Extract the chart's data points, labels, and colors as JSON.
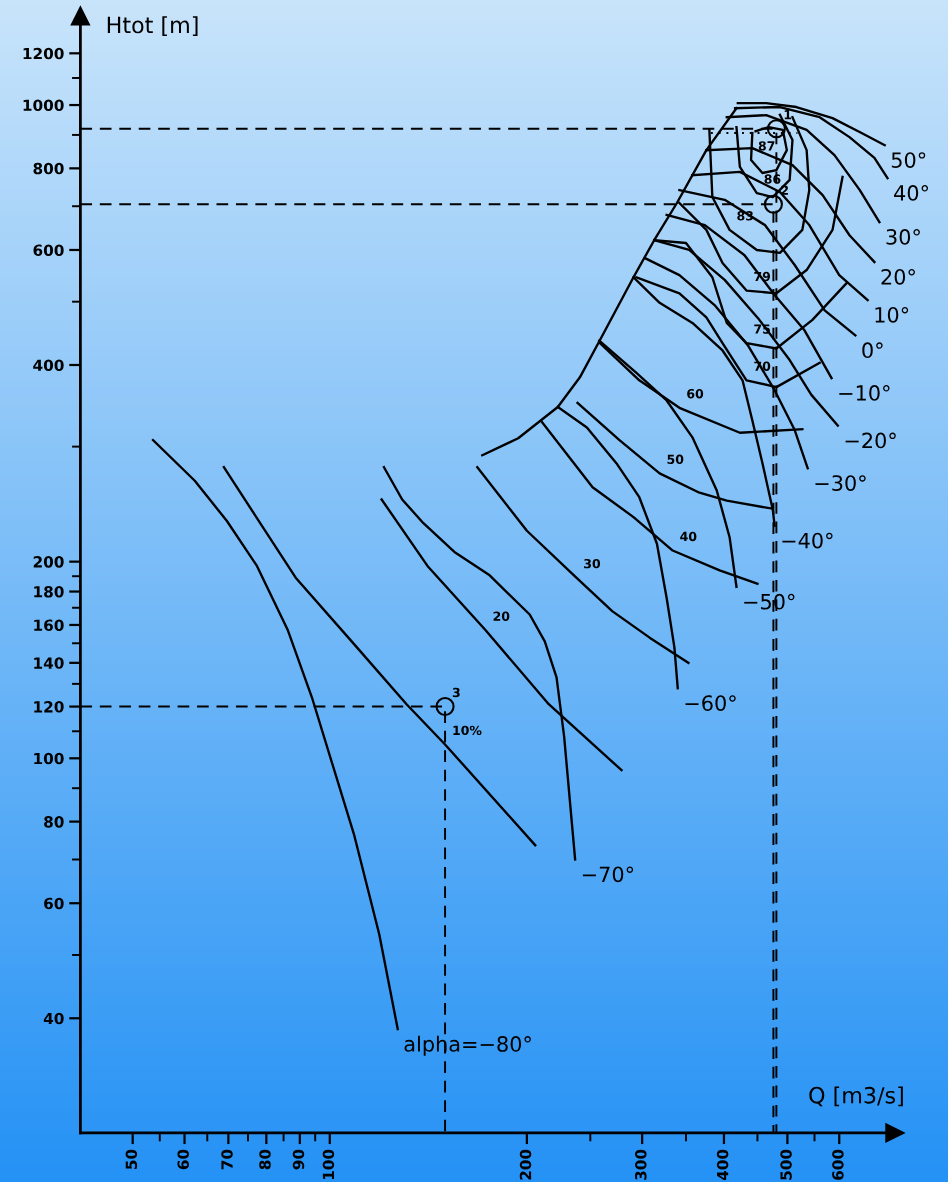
{
  "chart_data": {
    "type": "line",
    "log": "xy",
    "xlabel": "Q [m3/s]",
    "ylabel": "Htot [m]",
    "xlim": [
      41.6,
      730
    ],
    "ylim": [
      26.7,
      1370
    ],
    "xticks": [
      50,
      {
        "value": 55,
        "label": null
      },
      60,
      {
        "value": 65,
        "label": null
      },
      70,
      {
        "value": 75,
        "label": null
      },
      80,
      {
        "value": 85,
        "label": null
      },
      90,
      {
        "value": 95,
        "label": null
      },
      100,
      200,
      {
        "value": 250,
        "label": null
      },
      300,
      {
        "value": 350,
        "label": null
      },
      400,
      {
        "value": 450,
        "label": null
      },
      500,
      {
        "value": 550,
        "label": null
      },
      600
    ],
    "yticks": [
      40,
      {
        "value": 50,
        "label": null
      },
      60,
      {
        "value": 70,
        "label": null
      },
      80,
      {
        "value": 90,
        "label": null
      },
      100,
      {
        "value": 110,
        "label": null
      },
      120,
      {
        "value": 130,
        "label": null
      },
      140,
      {
        "value": 150,
        "label": null
      },
      160,
      {
        "value": 170,
        "label": null
      },
      180,
      {
        "value": 190,
        "label": null
      },
      200,
      {
        "value": 300,
        "label": null
      },
      400,
      {
        "value": 500,
        "label": null
      },
      600,
      {
        "value": 700,
        "label": null
      },
      800,
      {
        "value": 900,
        "label": null
      },
      1000,
      {
        "value": 1100,
        "label": null
      },
      1200
    ],
    "annotations": [
      {
        "text": "10%",
        "x": 150,
        "y": 105
      },
      {
        "text": "20",
        "x": 173,
        "y": 157
      },
      {
        "text": "30",
        "x": 238,
        "y": 189
      },
      {
        "text": "40",
        "x": 334,
        "y": 208
      },
      {
        "text": "50",
        "x": 319,
        "y": 273
      },
      {
        "text": "60",
        "x": 342,
        "y": 344
      },
      {
        "text": "70",
        "x": 433,
        "y": 379
      },
      {
        "text": "75",
        "x": 433,
        "y": 432
      },
      {
        "text": "79",
        "x": 433,
        "y": 520
      },
      {
        "text": "83",
        "x": 408,
        "y": 644
      },
      {
        "text": "86",
        "x": 449,
        "y": 733
      },
      {
        "text": "87",
        "x": 440,
        "y": 824
      },
      {
        "text": "1",
        "x": 481,
        "y": 920
      },
      {
        "text": "2",
        "x": 476,
        "y": 705
      },
      {
        "text": "3",
        "x": 150,
        "y": 120
      }
    ],
    "series": [
      {
        "name": "50°",
        "color": "#000000",
        "x": [
          420,
          464,
          516,
          586,
          649,
          704
        ],
        "values": [
          1007,
          1007,
          993,
          955,
          906,
          868
        ]
      },
      {
        "name": "40°",
        "color": "#000000",
        "x": [
          416,
          487,
          560,
          622,
          679,
          711
        ],
        "values": [
          989,
          993,
          958,
          893,
          830,
          773
        ]
      },
      {
        "name": "30°",
        "color": "#000000",
        "x": [
          404,
          464,
          535,
          590,
          645,
          691
        ],
        "values": [
          958,
          965,
          916,
          838,
          741,
          662
        ]
      },
      {
        "name": "20°",
        "color": "#000000",
        "x": [
          376,
          442,
          509,
          566,
          622,
          679
        ],
        "values": [
          853,
          859,
          809,
          728,
          632,
          575
        ]
      },
      {
        "name": "10°",
        "color": "#000000",
        "x": [
          358,
          423,
          487,
          540,
          600,
          663
        ],
        "values": [
          781,
          790,
          736,
          655,
          549,
          503
        ]
      },
      {
        "name": "0°",
        "color": "#000000",
        "x": [
          342,
          401,
          462,
          513,
          570,
          635
        ],
        "values": [
          741,
          716,
          655,
          569,
          485,
          444
        ]
      },
      {
        "name": "−10°",
        "color": "#000000",
        "x": [
          327,
          374,
          430,
          478,
          531,
          584
        ],
        "values": [
          679,
          655,
          589,
          512,
          452,
          382
        ]
      },
      {
        "name": "−20°",
        "color": "#000000",
        "x": [
          313,
          354,
          401,
          453,
          504,
          544,
          597
        ],
        "values": [
          621,
          600,
          540,
          469,
          407,
          360,
          323
        ]
      },
      {
        "name": "−30°",
        "color": "#000000",
        "x": [
          303,
          342,
          387,
          435,
          478,
          513,
          537
        ],
        "values": [
          583,
          549,
          494,
          429,
          366,
          318,
          278
        ]
      },
      {
        "name": "−40°",
        "color": "#000000",
        "x": [
          291,
          319,
          358,
          398,
          427,
          442,
          458,
          475,
          478
        ],
        "values": [
          545,
          498,
          464,
          421,
          379,
          329,
          283,
          240,
          227
        ]
      },
      {
        "name": "−50°",
        "color": "#000000",
        "x": [
          258,
          294,
          327,
          358,
          390,
          408,
          418
        ],
        "values": [
          436,
          389,
          353,
          310,
          257,
          218,
          183
        ]
      },
      {
        "name": "−60°",
        "color": "#000000",
        "x": [
          223,
          247,
          274,
          297,
          316,
          327,
          336,
          340
        ],
        "values": [
          345,
          321,
          283,
          251,
          213,
          176,
          148,
          128
        ]
      },
      {
        "name": "−70°",
        "color": "#000000",
        "x": [
          121,
          129,
          139,
          155,
          175,
          202,
          213,
          222,
          228,
          237
        ],
        "values": [
          279,
          249,
          229,
          207,
          191,
          166,
          151,
          133,
          108,
          70
        ]
      },
      {
        "name": "alpha=−80°",
        "color": "#000000",
        "x": [
          53.7,
          62.2,
          69.6,
          77.4,
          86.3,
          93.9,
          109,
          119,
          127
        ],
        "values": [
          307,
          266,
          231,
          197,
          157,
          124,
          76.2,
          53.8,
          38.5
        ]
      },
      {
        "color": "#000000",
        "x": [
          171,
          194,
          223,
          241,
          260,
          291,
          313,
          339,
          376,
          418
        ],
        "values": [
          291,
          309,
          345,
          383,
          441,
          545,
          621,
          708,
          853,
          989
        ]
      },
      {
        "color": "#000000",
        "x": [
          68.9,
          88.7,
          108,
          131,
          150,
          206
        ],
        "values": [
          279,
          189,
          151,
          121,
          105,
          73.6
        ]
      },
      {
        "color": "#000000",
        "x": [
          120,
          141,
          173,
          216,
          279
        ],
        "values": [
          249,
          197,
          157,
          121,
          95.9
        ]
      },
      {
        "color": "#000000",
        "x": [
          168,
          200,
          238,
          270,
          308,
          353
        ],
        "values": [
          279,
          223,
          189,
          168,
          153,
          140
        ]
      },
      {
        "color": "#000000",
        "x": [
          211,
          252,
          291,
          334,
          394,
          450
        ],
        "values": [
          327,
          260,
          234,
          208,
          194,
          185
        ]
      },
      {
        "color": "#000000",
        "x": [
          239,
          277,
          319,
          367,
          404,
          475
        ],
        "values": [
          350,
          307,
          273,
          255,
          248,
          241
        ]
      },
      {
        "color": "#000000",
        "x": [
          258,
          297,
          342,
          423,
          527
        ],
        "values": [
          433,
          379,
          344,
          315,
          319
        ]
      },
      {
        "color": "#000000",
        "x": [
          294,
          342,
          376,
          398,
          433,
          481,
          560
        ],
        "values": [
          545,
          515,
          473,
          432,
          379,
          370,
          403
        ]
      },
      {
        "color": "#000000",
        "x": [
          313,
          350,
          384,
          404,
          433,
          481,
          546,
          616
        ],
        "values": [
          621,
          615,
          545,
          464,
          432,
          424,
          469,
          534
        ]
      },
      {
        "color": "#000000",
        "x": [
          342,
          376,
          398,
          433,
          481,
          535,
          586,
          607
        ],
        "values": [
          708,
          644,
          573,
          520,
          515,
          559,
          644,
          776
        ]
      },
      {
        "color": "#000000",
        "x": [
          380,
          384,
          408,
          449,
          487,
          527,
          540,
          535,
          509
        ],
        "values": [
          916,
          723,
          644,
          600,
          594,
          644,
          741,
          853,
          958
        ]
      },
      {
        "color": "#000000",
        "x": [
          418,
          423,
          449,
          475,
          504,
          509,
          487
        ],
        "values": [
          925,
          804,
          733,
          723,
          768,
          884,
          966
        ]
      },
      {
        "color": "#000000",
        "x": [
          442,
          440,
          458,
          481,
          499,
          492,
          468,
          447
        ],
        "values": [
          906,
          824,
          787,
          795,
          853,
          916,
          925,
          912
        ]
      },
      {
        "line_style": "dashed",
        "color": "#000000",
        "x": [
          41.6,
          481,
          481
        ],
        "values": [
          920,
          920,
          26.7
        ]
      },
      {
        "line_style": "dashed",
        "color": "#000000",
        "x": [
          41.6,
          476,
          476
        ],
        "values": [
          705,
          705,
          26.7
        ]
      },
      {
        "line_style": "dashed",
        "color": "#000000",
        "x": [
          41.6,
          150,
          150
        ],
        "values": [
          120,
          120,
          26.7
        ]
      },
      {
        "line_style": "dotted",
        "color": "#000000",
        "x": [
          382,
          518
        ],
        "values": [
          906,
          906
        ]
      },
      {
        "type": "scatter",
        "marker": "circle",
        "color": "#000000",
        "x": [
          481,
          476,
          150
        ],
        "values": [
          920,
          705,
          120
        ]
      }
    ]
  }
}
